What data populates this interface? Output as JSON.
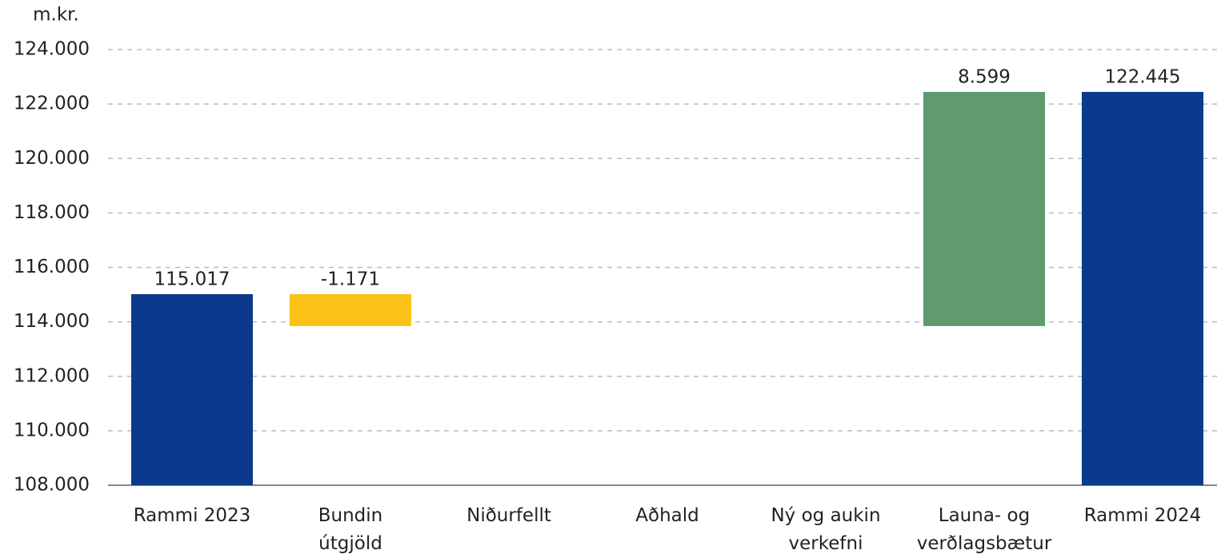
{
  "chart_data": {
    "type": "waterfall",
    "y_label": "m.kr.",
    "categories": [
      "Rammi 2023",
      "Bundin\nútgjöld",
      "Niðurfellt",
      "Aðhald",
      "Ný og aukin\nverkefni",
      "Launa- og\nverðlagsbætur",
      "Rammi 2024"
    ],
    "values": [
      115017,
      -1171,
      null,
      null,
      null,
      8599,
      122445
    ],
    "value_labels": [
      "115.017",
      "-1.171",
      null,
      null,
      null,
      "8.599",
      "122.445"
    ],
    "measure": [
      "total",
      "relative",
      "relative",
      "relative",
      "relative",
      "relative",
      "total"
    ],
    "colors": {
      "total": "#0b3a8d",
      "decrease": "#fcc218",
      "increase": "#609a6f"
    },
    "ylim": [
      108000,
      124000
    ],
    "yticks": [
      {
        "value": 108000,
        "label": "108.000"
      },
      {
        "value": 110000,
        "label": "110.000"
      },
      {
        "value": 112000,
        "label": "112.000"
      },
      {
        "value": 114000,
        "label": "114.000"
      },
      {
        "value": 116000,
        "label": "116.000"
      },
      {
        "value": 118000,
        "label": "118.000"
      },
      {
        "value": 120000,
        "label": "120.000"
      },
      {
        "value": 122000,
        "label": "122.000"
      },
      {
        "value": 124000,
        "label": "124.000"
      }
    ],
    "grid": true
  }
}
